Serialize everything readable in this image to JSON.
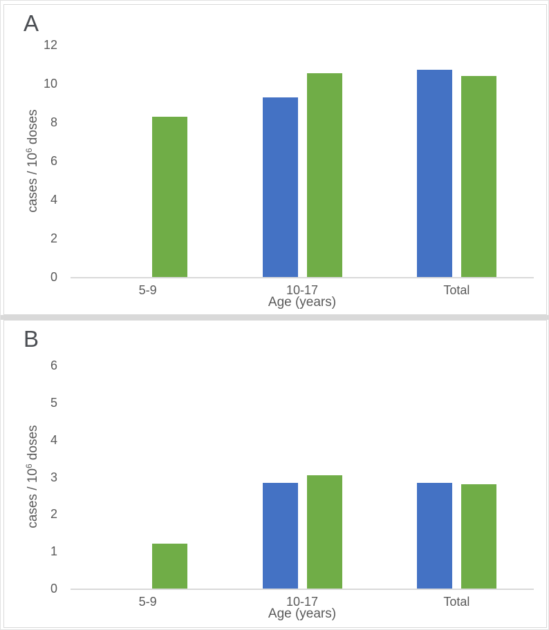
{
  "figure": {
    "panel_count": 2,
    "accent_colors": {
      "blue": "#4472C4",
      "green": "#70AD47",
      "axis_gray": "#D9D9D9",
      "text_gray": "#595959"
    }
  },
  "chart_data": [
    {
      "type": "bar",
      "panel_label": "A",
      "title": "",
      "categories": [
        "5-9",
        "10-17",
        "Total"
      ],
      "series": [
        {
          "name": "blue",
          "color": "#4472C4",
          "values": [
            null,
            9.3,
            10.7
          ]
        },
        {
          "name": "green",
          "color": "#70AD47",
          "values": [
            8.3,
            10.55,
            10.4
          ]
        }
      ],
      "xlabel": "Age (years)",
      "ylabel": "cases / 10⁶ doses",
      "ylabel_parts": {
        "base": "cases / 10",
        "sup": "6",
        "rest": " doses"
      },
      "ylim": [
        0,
        12
      ],
      "ytick_step": 2,
      "yticks": [
        0,
        2,
        4,
        6,
        8,
        10,
        12
      ],
      "grid": false,
      "legend": "none"
    },
    {
      "type": "bar",
      "panel_label": "B",
      "title": "",
      "categories": [
        "5-9",
        "10-17",
        "Total"
      ],
      "series": [
        {
          "name": "blue",
          "color": "#4472C4",
          "values": [
            null,
            2.85,
            2.85
          ]
        },
        {
          "name": "green",
          "color": "#70AD47",
          "values": [
            1.2,
            3.05,
            2.8
          ]
        }
      ],
      "xlabel": "Age (years)",
      "ylabel": "cases / 10⁶ doses",
      "ylabel_parts": {
        "base": "cases / 10",
        "sup": "6",
        "rest": " doses"
      },
      "ylim": [
        0,
        6
      ],
      "ytick_step": 1,
      "yticks": [
        0,
        1,
        2,
        3,
        4,
        5,
        6
      ],
      "grid": false,
      "legend": "none"
    }
  ]
}
